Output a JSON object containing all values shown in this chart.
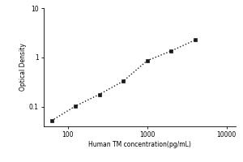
{
  "x_values": [
    62.5,
    125,
    250,
    500,
    1000,
    2000,
    4000
  ],
  "y_values": [
    0.052,
    0.103,
    0.178,
    0.33,
    0.86,
    1.35,
    2.25
  ],
  "xlabel": "Human TM concentration(pg/mL)",
  "ylabel": "Optical Density",
  "xlim": [
    50,
    13000
  ],
  "ylim": [
    0.04,
    10
  ],
  "xticks": [
    100,
    1000,
    10000
  ],
  "xtick_labels": [
    "100",
    "1000",
    "10000"
  ],
  "yticks": [
    0.1,
    1,
    10
  ],
  "ytick_labels": [
    "0.1",
    "1",
    "10"
  ],
  "marker": "s",
  "marker_color": "#1a1a1a",
  "marker_size": 3.5,
  "line_style": ":",
  "line_color": "#1a1a1a",
  "line_width": 1.0,
  "xlabel_fontsize": 5.5,
  "ylabel_fontsize": 5.5,
  "tick_fontsize": 5.5,
  "background_color": "#ffffff"
}
